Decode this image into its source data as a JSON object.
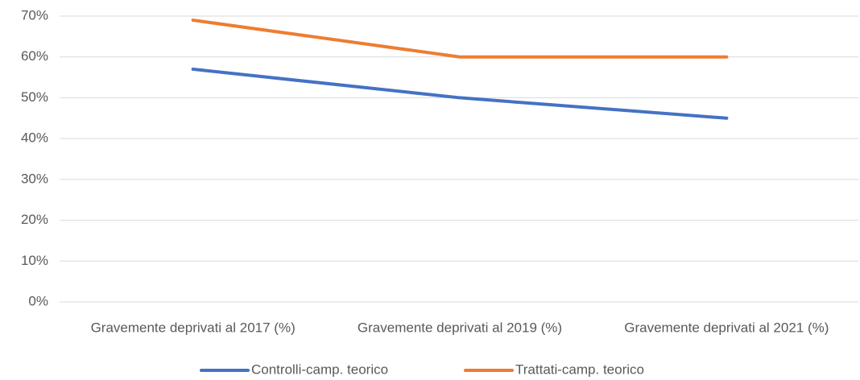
{
  "chart_data": {
    "type": "line",
    "categories": [
      "Gravemente deprivati al 2017 (%)",
      "Gravemente deprivati al 2019 (%)",
      "Gravemente deprivati al 2021 (%)"
    ],
    "series": [
      {
        "name": "Controlli-camp. teorico",
        "color": "#4472c4",
        "values": [
          57,
          50,
          45
        ]
      },
      {
        "name": "Trattati-camp. teorico",
        "color": "#ed7d31",
        "values": [
          69,
          60,
          60
        ]
      }
    ],
    "ylim": [
      0,
      70
    ],
    "yticks": [
      {
        "value": 0,
        "label": "0%"
      },
      {
        "value": 10,
        "label": "10%"
      },
      {
        "value": 20,
        "label": "20%"
      },
      {
        "value": 30,
        "label": "30%"
      },
      {
        "value": 40,
        "label": "40%"
      },
      {
        "value": 50,
        "label": "50%"
      },
      {
        "value": 60,
        "label": "60%"
      },
      {
        "value": 70,
        "label": "70%"
      }
    ],
    "grid": true,
    "legend": "bottom"
  }
}
